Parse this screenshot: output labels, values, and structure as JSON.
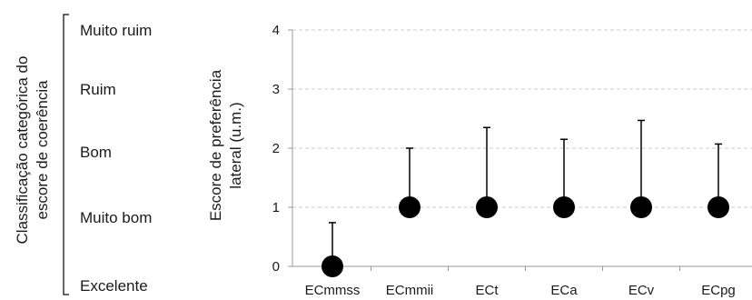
{
  "categorical_panel": {
    "title_lines": [
      "Classificação categórica do",
      "escore de coerência"
    ],
    "levels": [
      "Muito ruim",
      "Ruim",
      "Bom",
      "Muito bom",
      "Excelente"
    ]
  },
  "chart_data": {
    "type": "scatter",
    "ylabel_lines": [
      "Escore de preferência",
      "lateral (u.m.)"
    ],
    "xlabel": "",
    "categories": [
      "ECmmss",
      "ECmmii",
      "ECt",
      "ECa",
      "ECv",
      "ECpg"
    ],
    "series": [
      {
        "values": [
          0,
          1,
          1,
          1,
          1,
          1
        ],
        "error_upper": [
          0.74,
          2.0,
          2.35,
          2.15,
          2.47,
          2.07
        ]
      }
    ],
    "ylim": [
      0,
      4
    ],
    "yticks": [
      "0",
      "1",
      "2",
      "3",
      "4"
    ],
    "grid": true,
    "colors": {
      "marker": "#000000",
      "grid": "#cccccc",
      "axis": "#999999"
    }
  }
}
